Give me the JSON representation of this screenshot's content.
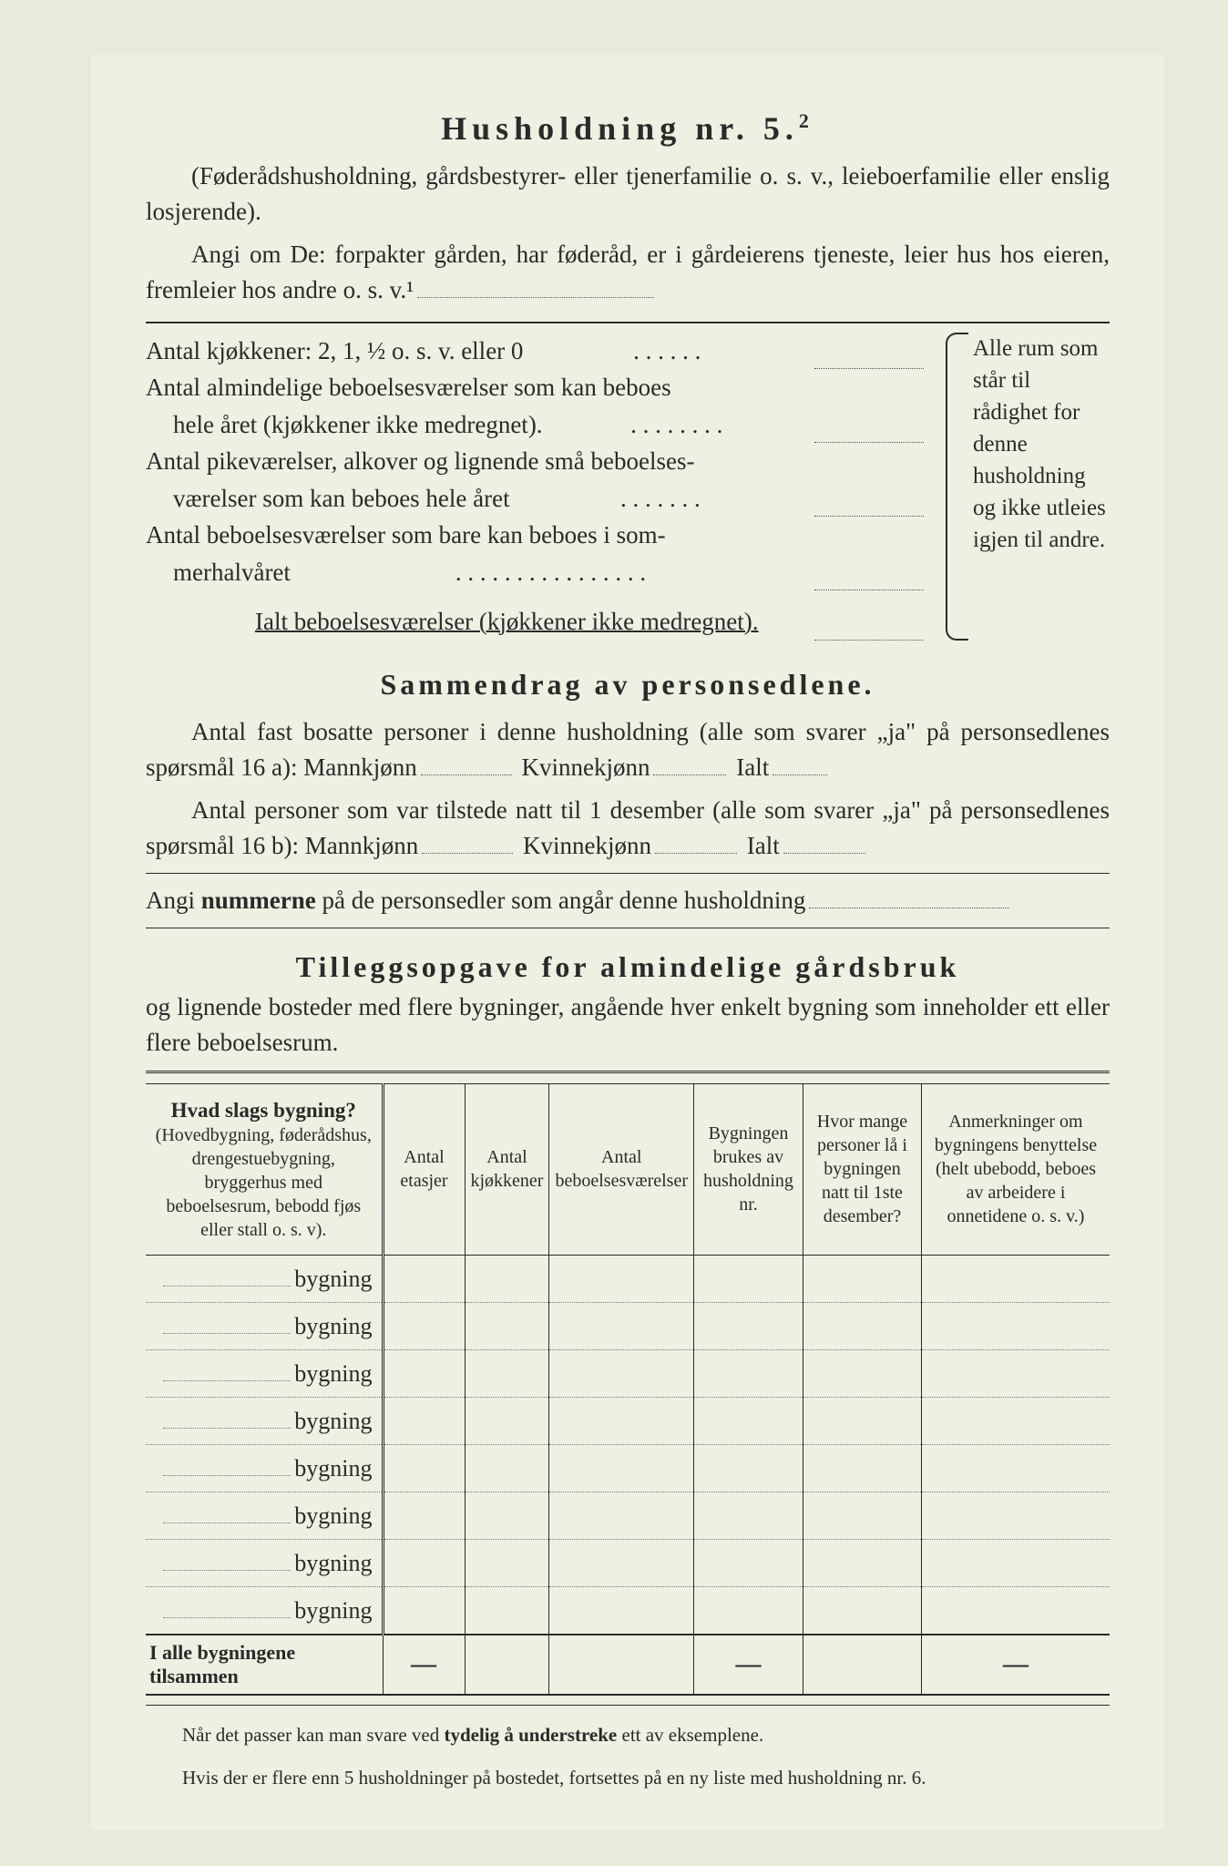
{
  "title": "Husholdning nr. 5.",
  "title_sup": "2",
  "intro_paren": "(Føderådshusholdning, gårdsbestyrer- eller tjenerfamilie o. s. v., leieboerfamilie eller enslig losjerende).",
  "intro2": "Angi om De: forpakter gården, har føderåd, er i gårdeierens tjeneste, leier hus hos eieren, fremleier hos andre o. s. v.¹",
  "rooms": {
    "r1": "Antal kjøkkener: 2, 1, ½ o. s. v. eller 0",
    "r2a": "Antal almindelige beboelsesværelser som kan beboes",
    "r2b": "hele året (kjøkkener ikke medregnet).",
    "r3a": "Antal pikeværelser, alkover og lignende små beboelses-",
    "r3b": "værelser som kan beboes hele året",
    "r4a": "Antal beboelsesværelser som bare kan beboes i som-",
    "r4b": "merhalvåret",
    "total": "Ialt beboelsesværelser  (kjøkkener ikke medregnet).",
    "side": "Alle rum som står til rådighet for denne husholdning og ikke utleies igjen til andre."
  },
  "summary_title": "Sammendrag av personsedlene.",
  "sum_p1a": "Antal fast bosatte personer i denne husholdning (alle som svarer „ja\" på personsedlenes spørsmål 16 a): Mannkjønn",
  "sum_kvinne": "Kvinnekjønn",
  "sum_ialt": "Ialt",
  "sum_p2a": "Antal personer som var tilstede natt til 1 desember (alle som svarer „ja\" på personsedlenes spørsmål 16 b): Mannkjønn",
  "sum_angi": "Angi ",
  "sum_nummerne": "nummerne",
  "sum_angi2": " på de personsedler som angår denne husholdning",
  "supp_title": "Tilleggsopgave for almindelige gårdsbruk",
  "supp_sub": "og lignende bosteder med flere bygninger, angående hver enkelt bygning som inneholder ett eller flere beboelsesrum.",
  "table": {
    "h1_bold": "Hvad slags bygning?",
    "h1_rest": "(Hovedbygning, føderådshus, drengestuebygning, bryggerhus med beboelsesrum, bebodd fjøs eller stall o. s. v).",
    "h2": "Antal etasjer",
    "h3": "Antal kjøkkener",
    "h4": "Antal beboelsesværelser",
    "h5": "Bygningen brukes av husholdning nr.",
    "h6": "Hvor mange personer lå i bygningen natt til 1ste desember?",
    "h7": "Anmerkninger om bygningens benyttelse (helt ubebodd, beboes av arbeidere i onnetidene o. s. v.)",
    "row_label": "bygning",
    "num_rows": 8,
    "total_label": "I alle bygningene tilsammen"
  },
  "footnote1": "Når det passer kan man svare ved ",
  "footnote1b": "tydelig å understreke",
  "footnote1c": " ett av eksemplene.",
  "footnote2": "Hvis der er flere enn 5 husholdninger på bostedet, fortsettes på en ny liste med husholdning nr. 6."
}
